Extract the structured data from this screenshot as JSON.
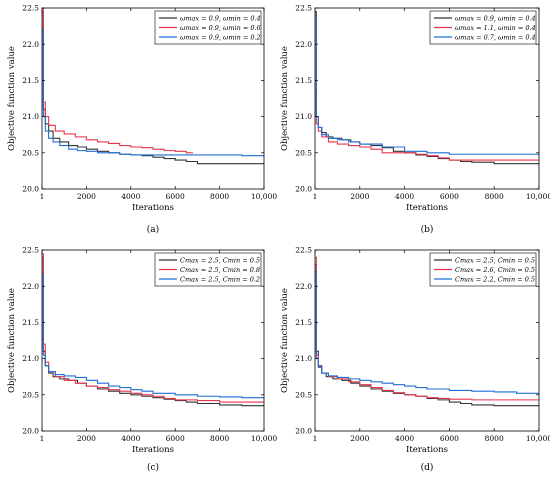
{
  "chart_data": [
    {
      "type": "line",
      "panel_label": "(a)",
      "xlabel": "Iterations",
      "ylabel": "Objective function value",
      "xlim": [
        0,
        10000
      ],
      "ylim": [
        20.0,
        22.5
      ],
      "xticks": [
        1,
        2000,
        4000,
        6000,
        8000,
        10000
      ],
      "xtick_labels": [
        "1",
        "2000",
        "4000",
        "6000",
        "8000",
        "10,000"
      ],
      "yticks": [
        20.0,
        20.5,
        21.0,
        21.5,
        22.0,
        22.5
      ],
      "ytick_labels": [
        "20.0",
        "20.5",
        "21.0",
        "21.5",
        "22.0",
        "22.5"
      ],
      "grid": false,
      "legend_position": "top-right",
      "series": [
        {
          "name": "ωmax = 0.9, ωmin = 0.4",
          "color": "#333333",
          "x": [
            1,
            60,
            150,
            300,
            500,
            800,
            1200,
            1600,
            2000,
            2500,
            3000,
            3500,
            4000,
            4500,
            5000,
            5500,
            6000,
            6500,
            7000,
            8000,
            9000,
            10000
          ],
          "y": [
            22.45,
            21.1,
            20.9,
            20.8,
            20.7,
            20.65,
            20.6,
            20.58,
            20.55,
            20.52,
            20.5,
            20.48,
            20.47,
            20.46,
            20.44,
            20.42,
            20.4,
            20.38,
            20.35,
            20.35,
            20.35,
            20.35
          ]
        },
        {
          "name": "ωmax = 0.9, ωmin = 0.6",
          "color": "#e8344a",
          "x": [
            1,
            60,
            150,
            300,
            600,
            1000,
            1500,
            2000,
            2500,
            3000,
            3500,
            4000,
            4500,
            5000,
            5500,
            6000,
            6500,
            6800
          ],
          "y": [
            22.5,
            21.2,
            21.0,
            20.88,
            20.8,
            20.76,
            20.72,
            20.68,
            20.65,
            20.63,
            20.6,
            20.58,
            20.57,
            20.55,
            20.53,
            20.52,
            20.5,
            20.5
          ]
        },
        {
          "name": "ωmax = 0.9, ωmin = 0.2",
          "color": "#1f6fd6",
          "x": [
            1,
            60,
            150,
            300,
            500,
            800,
            1200,
            1600,
            2000,
            2500,
            3000,
            3500,
            4000,
            5000,
            6000,
            7000,
            8000,
            9000,
            10000
          ],
          "y": [
            22.2,
            21.0,
            20.8,
            20.7,
            20.65,
            20.6,
            20.55,
            20.53,
            20.52,
            20.5,
            20.5,
            20.48,
            20.47,
            20.47,
            20.47,
            20.47,
            20.47,
            20.46,
            20.46
          ]
        }
      ]
    },
    {
      "type": "line",
      "panel_label": "(b)",
      "xlabel": "Iterations",
      "ylabel": "Objective function value",
      "xlim": [
        0,
        10000
      ],
      "ylim": [
        20.0,
        22.5
      ],
      "xticks": [
        1,
        2000,
        4000,
        6000,
        8000,
        10000
      ],
      "xtick_labels": [
        "1",
        "2000",
        "4000",
        "6000",
        "8000",
        "10,000"
      ],
      "yticks": [
        20.0,
        20.5,
        21.0,
        21.5,
        22.0,
        22.5
      ],
      "ytick_labels": [
        "20.0",
        "20.5",
        "21.0",
        "21.5",
        "22.0",
        "22.5"
      ],
      "grid": false,
      "legend_position": "top-right",
      "series": [
        {
          "name": "ωmax = 0.9, ωmin = 0.4",
          "color": "#333333",
          "x": [
            1,
            60,
            150,
            300,
            500,
            800,
            1200,
            1600,
            2000,
            2500,
            3000,
            3500,
            4000,
            4500,
            5000,
            5500,
            6000,
            6500,
            7000,
            8000,
            9000,
            10000
          ],
          "y": [
            22.45,
            21.0,
            20.85,
            20.78,
            20.72,
            20.7,
            20.68,
            20.65,
            20.62,
            20.6,
            20.57,
            20.52,
            20.5,
            20.47,
            20.45,
            20.42,
            20.4,
            20.38,
            20.37,
            20.35,
            20.35,
            20.35
          ]
        },
        {
          "name": "ωmax = 1.1, ωmin = 0.4",
          "color": "#e8344a",
          "x": [
            1,
            60,
            150,
            300,
            600,
            1000,
            1500,
            2000,
            2500,
            3000,
            3500,
            4000,
            4500,
            5000,
            5500,
            6000,
            7000,
            8000,
            9000,
            10000
          ],
          "y": [
            21.3,
            20.9,
            20.8,
            20.72,
            20.65,
            20.62,
            20.6,
            20.58,
            20.55,
            20.5,
            20.5,
            20.5,
            20.48,
            20.46,
            20.43,
            20.4,
            20.4,
            20.4,
            20.4,
            20.4
          ]
        },
        {
          "name": "ωmax = 0.7, ωmin = 0.4",
          "color": "#1f6fd6",
          "x": [
            1,
            60,
            150,
            300,
            600,
            1000,
            1500,
            2000,
            3000,
            4000,
            5000,
            6000,
            7000,
            8000,
            9000,
            10000
          ],
          "y": [
            22.4,
            21.0,
            20.85,
            20.75,
            20.7,
            20.68,
            20.65,
            20.62,
            20.58,
            20.52,
            20.5,
            20.48,
            20.48,
            20.48,
            20.48,
            20.47
          ]
        }
      ]
    },
    {
      "type": "line",
      "panel_label": "(c)",
      "xlabel": "Iterations",
      "ylabel": "Objective function value",
      "xlim": [
        0,
        10000
      ],
      "ylim": [
        20.0,
        22.5
      ],
      "xticks": [
        1,
        2000,
        4000,
        6000,
        8000,
        10000
      ],
      "xtick_labels": [
        "1",
        "2000",
        "4000",
        "6000",
        "8000",
        "10,000"
      ],
      "yticks": [
        20.0,
        20.5,
        21.0,
        21.5,
        22.0,
        22.5
      ],
      "ytick_labels": [
        "20.0",
        "20.5",
        "21.0",
        "21.5",
        "22.0",
        "22.5"
      ],
      "grid": false,
      "legend_position": "top-right",
      "series": [
        {
          "name": "Cmax = 2.5, Cmin = 0.5",
          "color": "#333333",
          "x": [
            1,
            60,
            150,
            300,
            500,
            800,
            1200,
            1600,
            2000,
            2500,
            3000,
            3500,
            4000,
            4500,
            5000,
            5500,
            6000,
            6500,
            7000,
            8000,
            9000,
            10000
          ],
          "y": [
            22.4,
            21.1,
            20.9,
            20.8,
            20.75,
            20.72,
            20.7,
            20.66,
            20.62,
            20.58,
            20.55,
            20.52,
            20.5,
            20.48,
            20.46,
            20.44,
            20.42,
            20.4,
            20.38,
            20.36,
            20.35,
            20.35
          ]
        },
        {
          "name": "Cmax = 2.5, Cmin = 0.8",
          "color": "#e8344a",
          "x": [
            1,
            60,
            150,
            300,
            600,
            1000,
            1500,
            2000,
            2500,
            3000,
            3500,
            4000,
            4500,
            5000,
            5500,
            6000,
            7000,
            8000,
            9000,
            10000
          ],
          "y": [
            22.45,
            21.2,
            20.95,
            20.82,
            20.75,
            20.7,
            20.66,
            20.62,
            20.6,
            20.57,
            20.55,
            20.52,
            20.5,
            20.48,
            20.45,
            20.43,
            20.42,
            20.4,
            20.4,
            20.4
          ]
        },
        {
          "name": "Cmax = 2.5, Cmin = 0.2",
          "color": "#1f6fd6",
          "x": [
            1,
            60,
            150,
            300,
            600,
            1000,
            1500,
            2000,
            2500,
            3000,
            3500,
            4000,
            4500,
            5000,
            6000,
            7000,
            8000,
            9000,
            10000
          ],
          "y": [
            22.15,
            21.05,
            20.9,
            20.82,
            20.78,
            20.76,
            20.74,
            20.7,
            20.66,
            20.62,
            20.6,
            20.57,
            20.55,
            20.52,
            20.5,
            20.48,
            20.47,
            20.46,
            20.45
          ]
        }
      ]
    },
    {
      "type": "line",
      "panel_label": "(d)",
      "xlabel": "Iterations",
      "ylabel": "Objective function value",
      "xlim": [
        0,
        10000
      ],
      "ylim": [
        20.0,
        22.5
      ],
      "xticks": [
        1,
        2000,
        4000,
        6000,
        8000,
        10000
      ],
      "xtick_labels": [
        "1",
        "2000",
        "4000",
        "6000",
        "8000",
        "10,000"
      ],
      "yticks": [
        20.0,
        20.5,
        21.0,
        21.5,
        22.0,
        22.5
      ],
      "ytick_labels": [
        "20.0",
        "20.5",
        "21.0",
        "21.5",
        "22.0",
        "22.5"
      ],
      "grid": false,
      "legend_position": "top-right",
      "series": [
        {
          "name": "Cmax = 2.5, Cmin = 0.5",
          "color": "#333333",
          "x": [
            1,
            60,
            150,
            300,
            500,
            800,
            1200,
            1600,
            2000,
            2500,
            3000,
            3500,
            4000,
            4500,
            5000,
            5500,
            6000,
            6500,
            7000,
            8000,
            9000,
            10000
          ],
          "y": [
            22.3,
            21.1,
            20.9,
            20.8,
            20.75,
            20.72,
            20.7,
            20.66,
            20.62,
            20.58,
            20.55,
            20.52,
            20.5,
            20.48,
            20.45,
            20.43,
            20.4,
            20.38,
            20.36,
            20.35,
            20.35,
            20.35
          ]
        },
        {
          "name": "Cmax = 2.6, Cmin = 0.5",
          "color": "#e8344a",
          "x": [
            1,
            60,
            150,
            300,
            600,
            1000,
            1500,
            2000,
            2500,
            3000,
            3500,
            4000,
            4500,
            5000,
            5500,
            6000,
            7000,
            8000,
            9000,
            10000
          ],
          "y": [
            22.4,
            21.05,
            20.88,
            20.8,
            20.75,
            20.72,
            20.68,
            20.64,
            20.6,
            20.56,
            20.53,
            20.5,
            20.48,
            20.46,
            20.45,
            20.44,
            20.43,
            20.43,
            20.43,
            20.43
          ]
        },
        {
          "name": "Cmax = 2.2, Cmin = 0.5",
          "color": "#1f6fd6",
          "x": [
            1,
            60,
            150,
            300,
            600,
            1000,
            1500,
            2000,
            2500,
            3000,
            3500,
            4000,
            4500,
            5000,
            6000,
            7000,
            8000,
            9000,
            10000
          ],
          "y": [
            22.2,
            21.0,
            20.88,
            20.8,
            20.76,
            20.74,
            20.72,
            20.7,
            20.68,
            20.66,
            20.64,
            20.62,
            20.6,
            20.58,
            20.56,
            20.55,
            20.54,
            20.52,
            20.52
          ]
        }
      ]
    }
  ]
}
